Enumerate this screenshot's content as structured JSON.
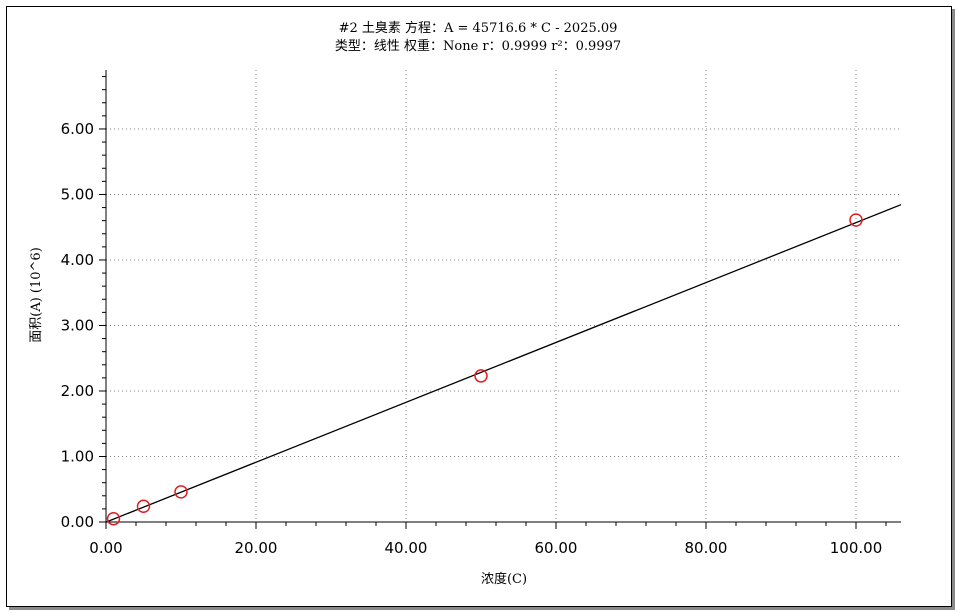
{
  "chart_data": {
    "type": "scatter",
    "title_line1": "#2   土臭素   方程：A = 45716.6 * C - 2025.09",
    "title_line2": "类型：线性   权重：None  r：0.9999 r²：0.9997",
    "xlabel": "浓度(C)",
    "ylabel": "面积(A) (10^6)",
    "xlim": [
      0,
      106
    ],
    "ylim": [
      0,
      6.9
    ],
    "x_ticks": [
      0,
      20,
      40,
      60,
      80,
      100
    ],
    "x_tick_labels": [
      "0.00",
      "20.00",
      "40.00",
      "60.00",
      "80.00",
      "100.00"
    ],
    "y_ticks": [
      0,
      1,
      2,
      3,
      4,
      5,
      6
    ],
    "y_tick_labels": [
      "0.00",
      "1.00",
      "2.00",
      "3.00",
      "4.00",
      "5.00",
      "6.00"
    ],
    "grid": true,
    "series": [
      {
        "x": [
          1,
          5,
          10,
          50,
          100
        ],
        "y": [
          0.05,
          0.24,
          0.46,
          2.23,
          4.61
        ]
      }
    ],
    "fit_line": {
      "slope": 0.0457166,
      "intercept": -0.00202509
    },
    "colors": {
      "points": "#e02020",
      "line": "#000000",
      "grid": "#808080"
    }
  }
}
